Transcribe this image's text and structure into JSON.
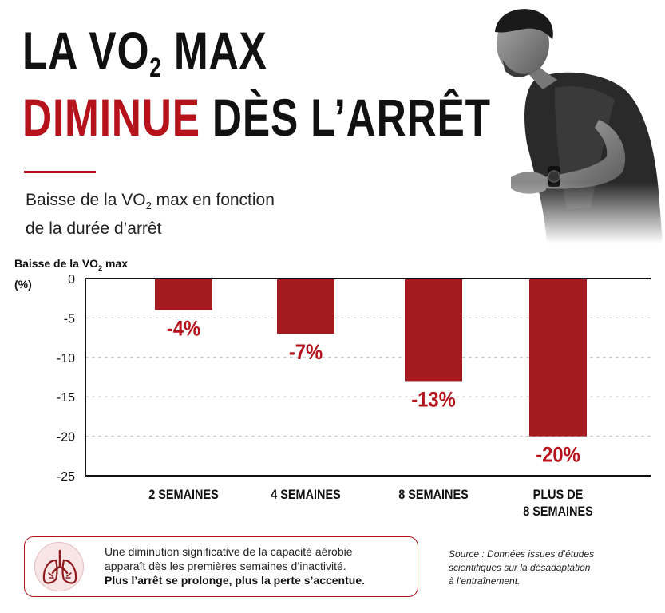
{
  "header": {
    "line1_text": "LA VO",
    "line1_sub": "2",
    "line1_after": " MAX",
    "line2_red": "DIMINUE",
    "line2_dark": " DÈS L’ARRÊT"
  },
  "subtitle": {
    "part1": "Baisse de la VO",
    "sub": "2",
    "part2": " max en fonction",
    "line2": "de la durée d’arrêt"
  },
  "axis_label": {
    "part1": "Baisse de la VO",
    "sub": "2",
    "part2": " max",
    "unit": "(%)"
  },
  "chart_data": {
    "type": "bar",
    "categories": [
      "2 SEMAINES",
      "4 SEMAINES",
      "8 SEMAINES",
      "PLUS DE 8 SEMAINES"
    ],
    "category_lines": [
      [
        "2 SEMAINES"
      ],
      [
        "4 SEMAINES"
      ],
      [
        "8 SEMAINES"
      ],
      [
        "PLUS DE",
        "8 SEMAINES"
      ]
    ],
    "values": [
      -4,
      -7,
      -13,
      -20
    ],
    "data_labels": [
      "-4%",
      "-7%",
      "-13%",
      "-20%"
    ],
    "ylabel": "Baisse de la VO₂ max (%)",
    "ylim": [
      -25,
      0
    ],
    "yticks": [
      0,
      -5,
      -10,
      -15,
      -20,
      -25
    ],
    "grid": true,
    "bar_color": "#a51a1e",
    "label_color": "#b5121b"
  },
  "info": {
    "line1": "Une diminution significative de la capacité aérobie",
    "line2": "apparaît dès les premières semaines d’inactivité.",
    "bold": "Plus l’arrêt se prolonge, plus la perte s’accentue.",
    "icon": "lungs-icon"
  },
  "source": {
    "line1": "Source : Données issues d’études",
    "line2": "scientifiques sur la désadaptation",
    "line3": "à l’entraînement."
  },
  "colors": {
    "accent": "#b5121b",
    "text": "#111111"
  }
}
